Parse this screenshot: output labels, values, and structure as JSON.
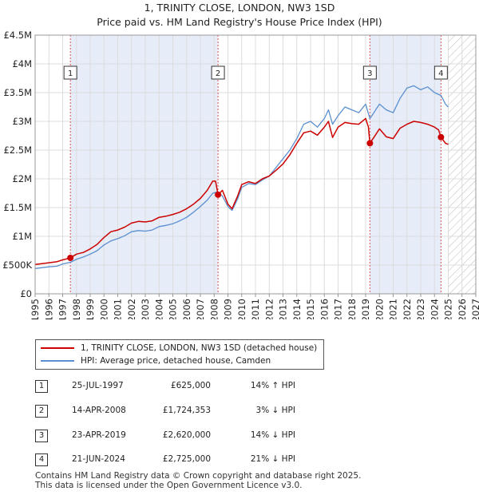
{
  "title": "1, TRINITY CLOSE, LONDON, NW3 1SD",
  "subtitle": "Price paid vs. HM Land Registry's House Price Index (HPI)",
  "chart_data": {
    "type": "line",
    "xlim": [
      1995,
      2027
    ],
    "ylim": [
      0,
      4500000
    ],
    "x_ticks": [
      "1995",
      "1996",
      "1997",
      "1998",
      "1999",
      "2000",
      "2001",
      "2002",
      "2003",
      "2004",
      "2005",
      "2006",
      "2007",
      "2008",
      "2009",
      "2010",
      "2011",
      "2012",
      "2013",
      "2014",
      "2015",
      "2016",
      "2017",
      "2018",
      "2019",
      "2020",
      "2021",
      "2022",
      "2023",
      "2024",
      "2025",
      "2026",
      "2027"
    ],
    "y_ticks": [
      {
        "value": 0,
        "label": "£0"
      },
      {
        "value": 500000,
        "label": "£500K"
      },
      {
        "value": 1000000,
        "label": "£1M"
      },
      {
        "value": 1500000,
        "label": "£1.5M"
      },
      {
        "value": 2000000,
        "label": "£2M"
      },
      {
        "value": 2500000,
        "label": "£2.5M"
      },
      {
        "value": 3000000,
        "label": "£3M"
      },
      {
        "value": 3500000,
        "label": "£3.5M"
      },
      {
        "value": 4000000,
        "label": "£4M"
      },
      {
        "value": 4500000,
        "label": "£4.5M"
      }
    ],
    "shaded_periods": [
      {
        "from": 1997.56,
        "to": 2008.28
      },
      {
        "from": 2019.31,
        "to": 2024.47
      }
    ],
    "future_hatch_from": 2025.0,
    "series": [
      {
        "name": "1, TRINITY CLOSE, LONDON, NW3 1SD (detached house)",
        "color": "#cc0000",
        "points": [
          [
            1995.0,
            510000
          ],
          [
            1996.0,
            540000
          ],
          [
            1996.6,
            560000
          ],
          [
            1997.0,
            590000
          ],
          [
            1997.56,
            625000
          ],
          [
            1998.0,
            690000
          ],
          [
            1998.5,
            720000
          ],
          [
            1999.0,
            780000
          ],
          [
            1999.5,
            860000
          ],
          [
            2000.0,
            980000
          ],
          [
            2000.5,
            1080000
          ],
          [
            2001.0,
            1110000
          ],
          [
            2001.5,
            1160000
          ],
          [
            2002.0,
            1230000
          ],
          [
            2002.5,
            1260000
          ],
          [
            2003.0,
            1250000
          ],
          [
            2003.5,
            1270000
          ],
          [
            2004.0,
            1330000
          ],
          [
            2004.5,
            1350000
          ],
          [
            2005.0,
            1380000
          ],
          [
            2005.5,
            1420000
          ],
          [
            2006.0,
            1480000
          ],
          [
            2006.5,
            1560000
          ],
          [
            2007.0,
            1660000
          ],
          [
            2007.5,
            1800000
          ],
          [
            2007.9,
            1960000
          ],
          [
            2008.1,
            1960000
          ],
          [
            2008.28,
            1724353
          ],
          [
            2008.6,
            1800000
          ],
          [
            2009.0,
            1560000
          ],
          [
            2009.3,
            1480000
          ],
          [
            2009.7,
            1700000
          ],
          [
            2010.0,
            1900000
          ],
          [
            2010.5,
            1950000
          ],
          [
            2011.0,
            1920000
          ],
          [
            2011.5,
            2000000
          ],
          [
            2012.0,
            2050000
          ],
          [
            2012.5,
            2150000
          ],
          [
            2013.0,
            2260000
          ],
          [
            2013.5,
            2420000
          ],
          [
            2014.0,
            2620000
          ],
          [
            2014.5,
            2800000
          ],
          [
            2015.0,
            2830000
          ],
          [
            2015.5,
            2760000
          ],
          [
            2016.0,
            2900000
          ],
          [
            2016.3,
            3000000
          ],
          [
            2016.6,
            2720000
          ],
          [
            2017.0,
            2900000
          ],
          [
            2017.5,
            2980000
          ],
          [
            2018.0,
            2960000
          ],
          [
            2018.5,
            2950000
          ],
          [
            2019.0,
            3050000
          ],
          [
            2019.2,
            2900000
          ],
          [
            2019.31,
            2620000
          ],
          [
            2019.6,
            2720000
          ],
          [
            2020.0,
            2870000
          ],
          [
            2020.5,
            2730000
          ],
          [
            2021.0,
            2700000
          ],
          [
            2021.5,
            2880000
          ],
          [
            2022.0,
            2950000
          ],
          [
            2022.5,
            3000000
          ],
          [
            2023.0,
            2980000
          ],
          [
            2023.5,
            2950000
          ],
          [
            2024.0,
            2900000
          ],
          [
            2024.3,
            2850000
          ],
          [
            2024.47,
            2725000
          ],
          [
            2024.8,
            2620000
          ],
          [
            2025.0,
            2600000
          ]
        ]
      },
      {
        "name": "HPI: Average price, detached house, Camden",
        "color": "#5b8fd0",
        "points": [
          [
            1995.0,
            440000
          ],
          [
            1996.0,
            470000
          ],
          [
            1996.6,
            480000
          ],
          [
            1997.0,
            520000
          ],
          [
            1997.56,
            548000
          ],
          [
            1998.0,
            600000
          ],
          [
            1998.5,
            640000
          ],
          [
            1999.0,
            690000
          ],
          [
            1999.5,
            750000
          ],
          [
            2000.0,
            850000
          ],
          [
            2000.5,
            920000
          ],
          [
            2001.0,
            960000
          ],
          [
            2001.5,
            1010000
          ],
          [
            2002.0,
            1080000
          ],
          [
            2002.5,
            1100000
          ],
          [
            2003.0,
            1090000
          ],
          [
            2003.5,
            1110000
          ],
          [
            2004.0,
            1170000
          ],
          [
            2004.5,
            1190000
          ],
          [
            2005.0,
            1220000
          ],
          [
            2005.5,
            1270000
          ],
          [
            2006.0,
            1330000
          ],
          [
            2006.5,
            1420000
          ],
          [
            2007.0,
            1520000
          ],
          [
            2007.5,
            1630000
          ],
          [
            2007.9,
            1750000
          ],
          [
            2008.28,
            1775000
          ],
          [
            2008.6,
            1700000
          ],
          [
            2009.0,
            1520000
          ],
          [
            2009.3,
            1450000
          ],
          [
            2009.7,
            1650000
          ],
          [
            2010.0,
            1850000
          ],
          [
            2010.5,
            1920000
          ],
          [
            2011.0,
            1900000
          ],
          [
            2011.5,
            1980000
          ],
          [
            2012.0,
            2050000
          ],
          [
            2012.5,
            2200000
          ],
          [
            2013.0,
            2350000
          ],
          [
            2013.5,
            2500000
          ],
          [
            2014.0,
            2700000
          ],
          [
            2014.5,
            2950000
          ],
          [
            2015.0,
            3000000
          ],
          [
            2015.5,
            2900000
          ],
          [
            2016.0,
            3050000
          ],
          [
            2016.3,
            3200000
          ],
          [
            2016.6,
            2950000
          ],
          [
            2017.0,
            3100000
          ],
          [
            2017.5,
            3250000
          ],
          [
            2018.0,
            3200000
          ],
          [
            2018.5,
            3150000
          ],
          [
            2019.0,
            3300000
          ],
          [
            2019.31,
            3050000
          ],
          [
            2019.6,
            3150000
          ],
          [
            2020.0,
            3300000
          ],
          [
            2020.5,
            3200000
          ],
          [
            2021.0,
            3150000
          ],
          [
            2021.5,
            3400000
          ],
          [
            2022.0,
            3580000
          ],
          [
            2022.5,
            3620000
          ],
          [
            2023.0,
            3550000
          ],
          [
            2023.5,
            3600000
          ],
          [
            2024.0,
            3500000
          ],
          [
            2024.47,
            3450000
          ],
          [
            2024.8,
            3300000
          ],
          [
            2025.0,
            3250000
          ]
        ]
      }
    ],
    "markers": [
      {
        "label": "1",
        "x": 1997.56,
        "y": 625000
      },
      {
        "label": "2",
        "x": 2008.28,
        "y": 1724353
      },
      {
        "label": "3",
        "x": 2019.31,
        "y": 2620000
      },
      {
        "label": "4",
        "x": 2024.47,
        "y": 2725000
      }
    ]
  },
  "legend": {
    "items": [
      {
        "label": "1, TRINITY CLOSE, LONDON, NW3 1SD (detached house)",
        "color": "#cc0000"
      },
      {
        "label": "HPI: Average price, detached house, Camden",
        "color": "#5b8fd0"
      }
    ]
  },
  "transactions": [
    {
      "num": "1",
      "date": "25-JUL-1997",
      "price": "£625,000",
      "hpi": "14% ↑ HPI"
    },
    {
      "num": "2",
      "date": "14-APR-2008",
      "price": "£1,724,353",
      "hpi": "3% ↓ HPI"
    },
    {
      "num": "3",
      "date": "23-APR-2019",
      "price": "£2,620,000",
      "hpi": "14% ↓ HPI"
    },
    {
      "num": "4",
      "date": "21-JUN-2024",
      "price": "£2,725,000",
      "hpi": "21% ↓ HPI"
    }
  ],
  "footer": {
    "line1": "Contains HM Land Registry data © Crown copyright and database right 2025.",
    "line2": "This data is licensed under the Open Government Licence v3.0."
  }
}
